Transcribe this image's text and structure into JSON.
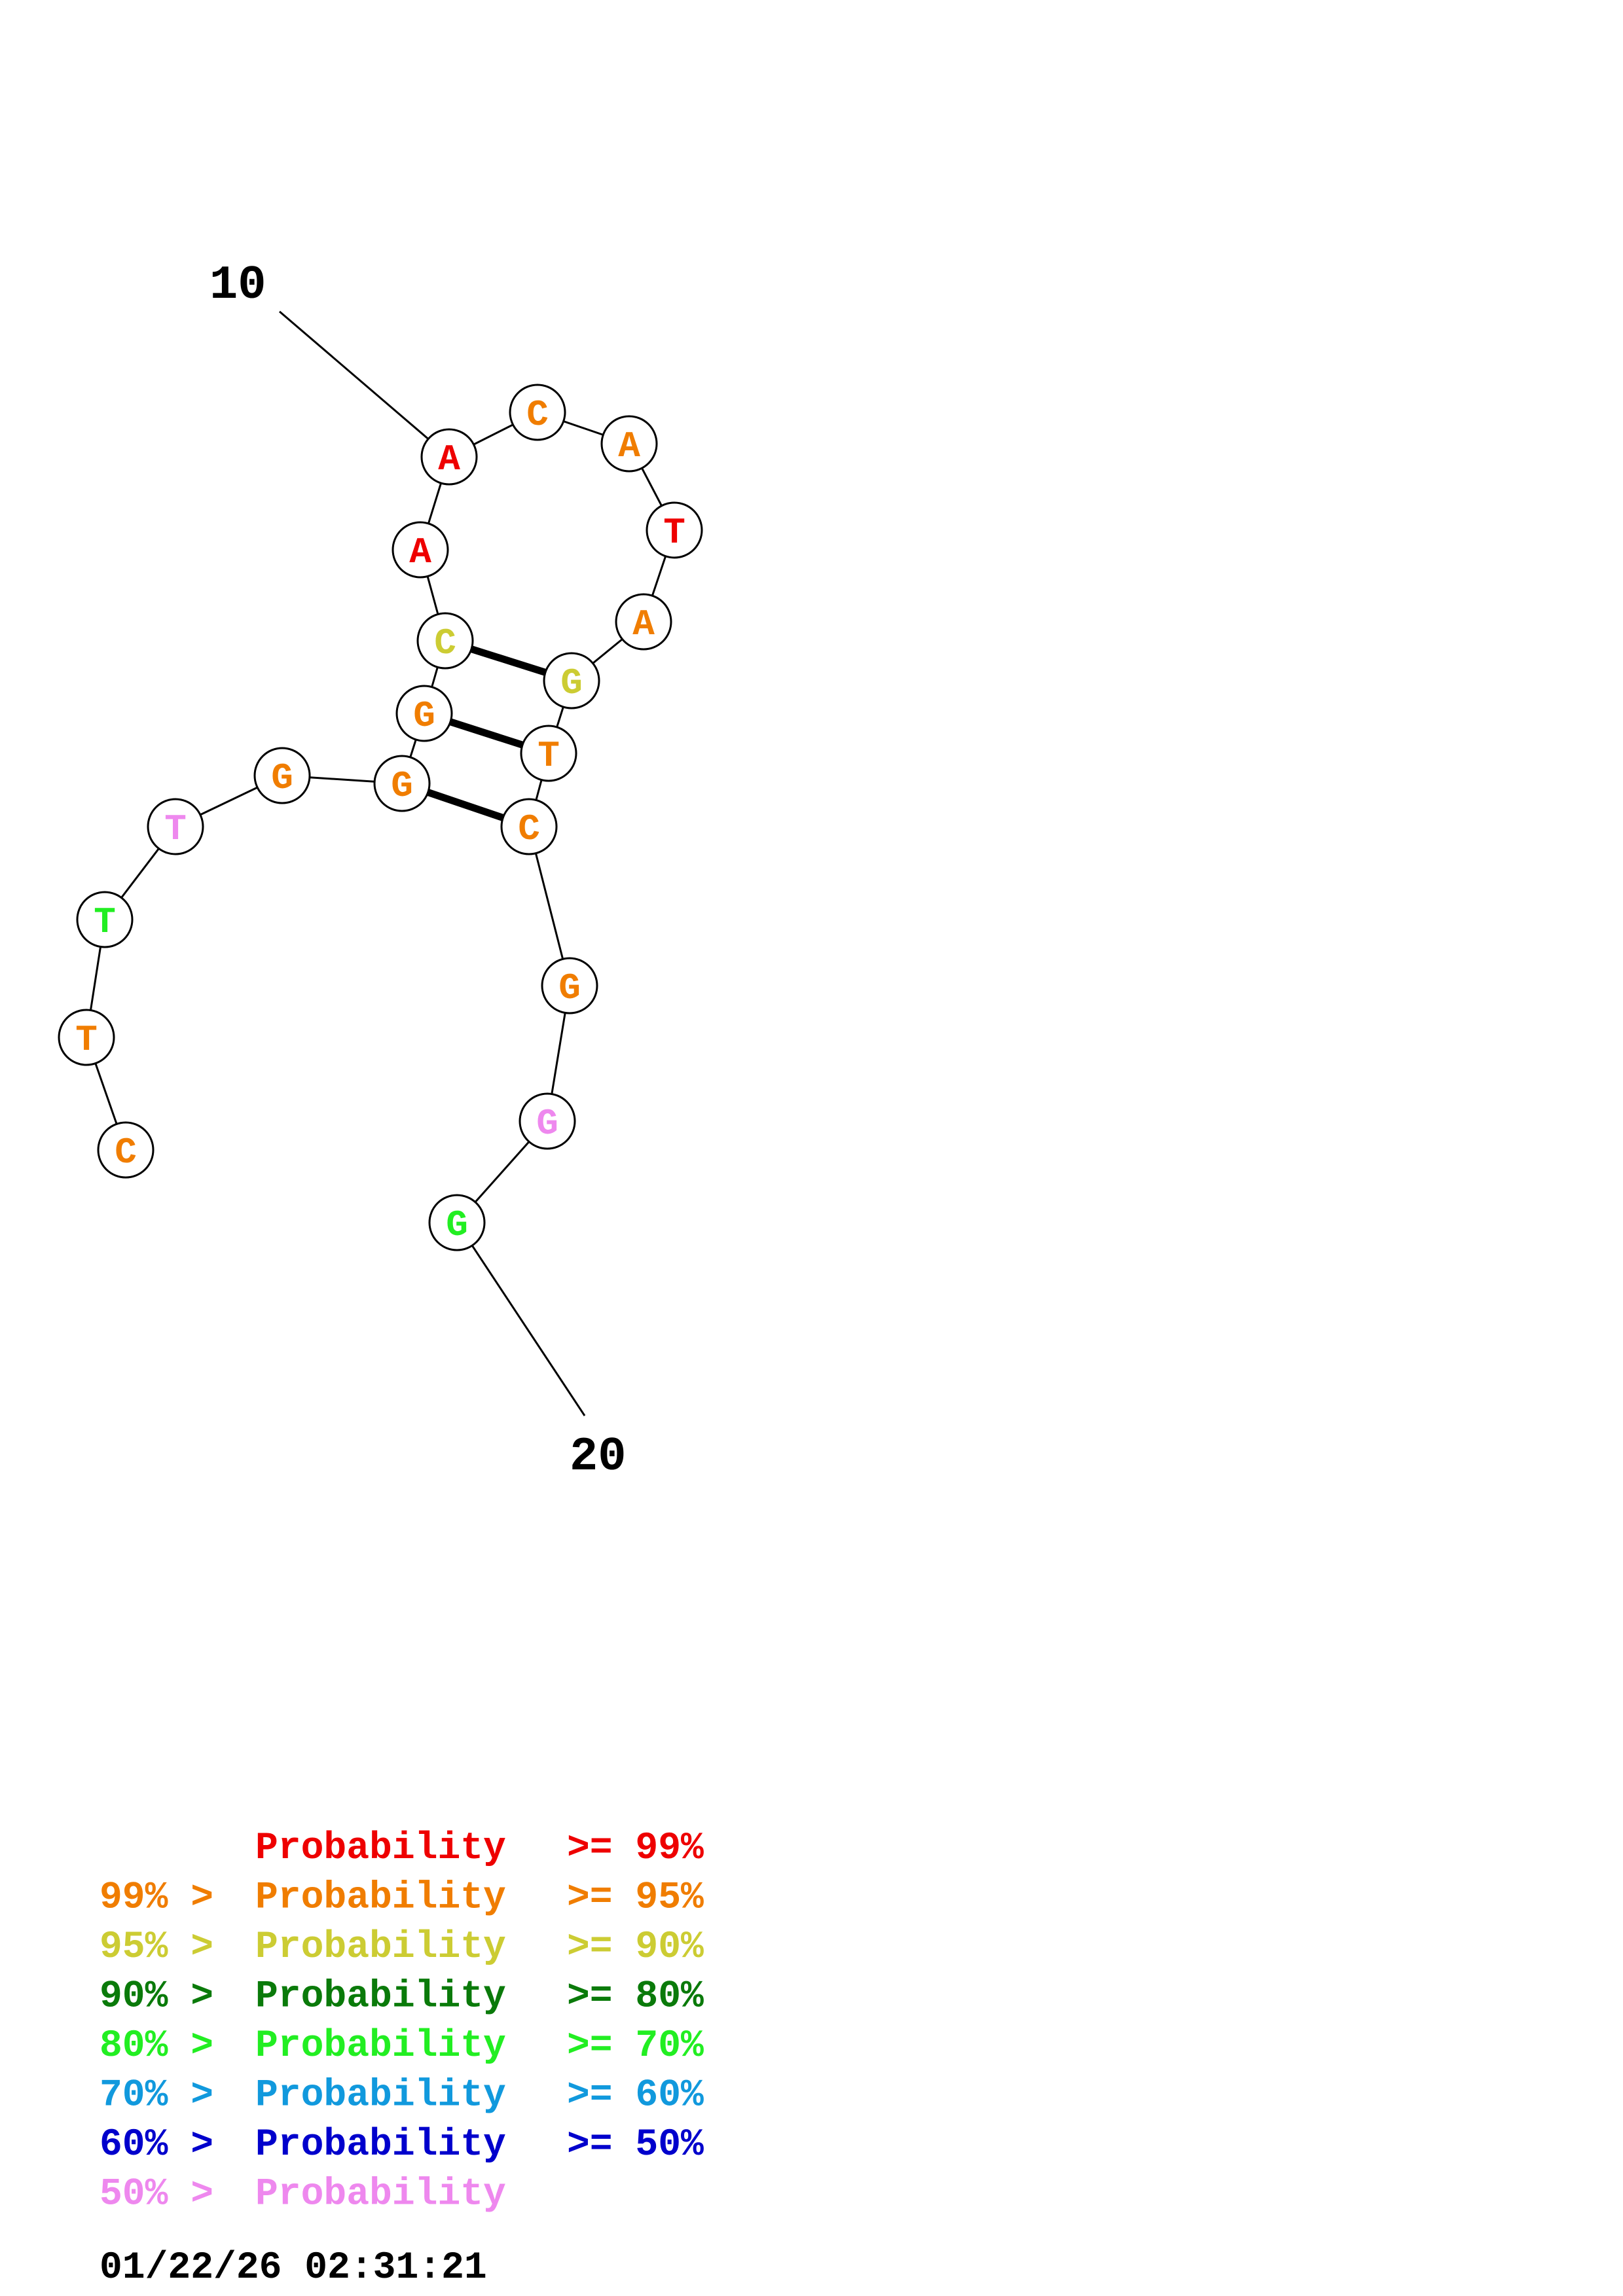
{
  "structure": {
    "start_label": "10",
    "end_label": "20",
    "nucleotides": [
      {
        "base": "A",
        "color": "#ee0000"
      },
      {
        "base": "C",
        "color": "#f07d00"
      },
      {
        "base": "A",
        "color": "#f07d00"
      },
      {
        "base": "T",
        "color": "#ee0000"
      },
      {
        "base": "A",
        "color": "#f07d00"
      },
      {
        "base": "G",
        "color": "#cccc33"
      },
      {
        "base": "T",
        "color": "#f07d00"
      },
      {
        "base": "C",
        "color": "#f07d00"
      },
      {
        "base": "G",
        "color": "#f07d00"
      },
      {
        "base": "G",
        "color": "#ee88ee"
      },
      {
        "base": "G",
        "color": "#22ee22"
      },
      {
        "base": "A",
        "color": "#ee0000"
      },
      {
        "base": "C",
        "color": "#cccc33"
      },
      {
        "base": "G",
        "color": "#f07d00"
      },
      {
        "base": "G",
        "color": "#f07d00"
      },
      {
        "base": "G",
        "color": "#f07d00"
      },
      {
        "base": "T",
        "color": "#ee88ee"
      },
      {
        "base": "T",
        "color": "#22ee22"
      },
      {
        "base": "T",
        "color": "#f07d00"
      },
      {
        "base": "C",
        "color": "#f07d00"
      }
    ],
    "base_pairs": [
      [
        "C",
        "G"
      ],
      [
        "G",
        "T"
      ],
      [
        "G",
        "C"
      ]
    ]
  },
  "legend": [
    {
      "prefix": "",
      "label": "Probability",
      "suffix": ">= 99%",
      "color": "#ee0000"
    },
    {
      "prefix": "99% >",
      "label": "Probability",
      "suffix": ">= 95%",
      "color": "#f07d00"
    },
    {
      "prefix": "95% >",
      "label": "Probability",
      "suffix": ">= 90%",
      "color": "#cccc33"
    },
    {
      "prefix": "90% >",
      "label": "Probability",
      "suffix": ">= 80%",
      "color": "#0a7a0a"
    },
    {
      "prefix": "80% >",
      "label": "Probability",
      "suffix": ">= 70%",
      "color": "#22ee22"
    },
    {
      "prefix": "70% >",
      "label": "Probability",
      "suffix": ">= 60%",
      "color": "#1199dd"
    },
    {
      "prefix": "60% >",
      "label": "Probability",
      "suffix": ">= 50%",
      "color": "#0000cc"
    },
    {
      "prefix": "50% >",
      "label": "Probability",
      "suffix": "",
      "color": "#ee88ee"
    }
  ],
  "timestamp": "01/22/26 02:31:21"
}
